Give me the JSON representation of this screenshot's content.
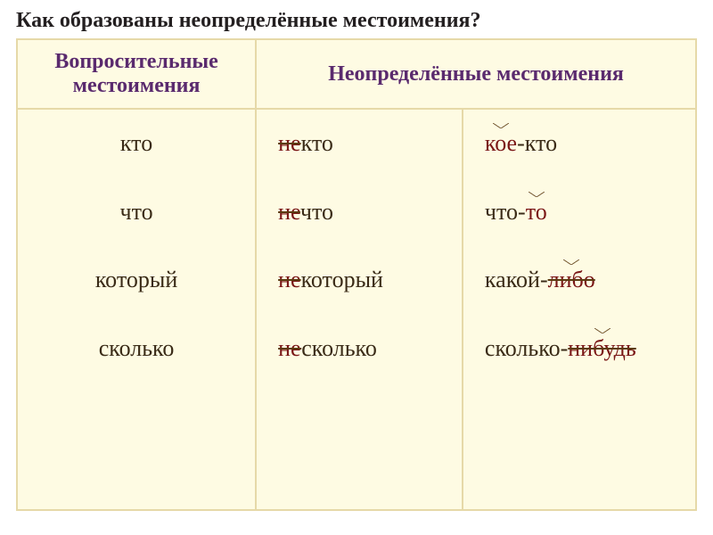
{
  "title": {
    "text": "Как образованы неопределённые местоимения?",
    "color": "#231f20",
    "fontsize": 24
  },
  "table": {
    "background_color": "#fefbe3",
    "border_color": "#e6d9a8",
    "header_color": "#5a2a6e",
    "header_fontsize": 24,
    "body_fontsize": 26,
    "body_color": "#3a2b17",
    "prefix_color": "#7a1616",
    "suffix_color": "#7a1616",
    "strike_color": "#5b3a10",
    "headers": {
      "left": "Вопросительные местоимения",
      "right": "Неопределённые местоимения"
    },
    "rows": [
      {
        "base": "кто",
        "prefixed": {
          "prefix": "не",
          "stem": "кто"
        },
        "suffixed": {
          "pre": "кое",
          "dash": "-",
          "stem": "кто",
          "caret_on": "pre"
        }
      },
      {
        "base": "что",
        "prefixed": {
          "prefix": "не",
          "stem": "что"
        },
        "suffixed": {
          "stem": "что",
          "dash": "-",
          "post": "то",
          "caret_on": "post"
        }
      },
      {
        "base": "который",
        "prefixed": {
          "prefix": "не",
          "stem": "который"
        },
        "suffixed": {
          "stem": "какой",
          "dash": "-",
          "post": "либо",
          "caret_on": "post",
          "strike_post": true
        }
      },
      {
        "base": "сколько",
        "prefixed": {
          "prefix": "не",
          "stem": "сколько"
        },
        "suffixed": {
          "stem": "сколько",
          "dash": "-",
          "post": "нибудь",
          "caret_on": "post",
          "strike_post": true
        }
      }
    ]
  }
}
